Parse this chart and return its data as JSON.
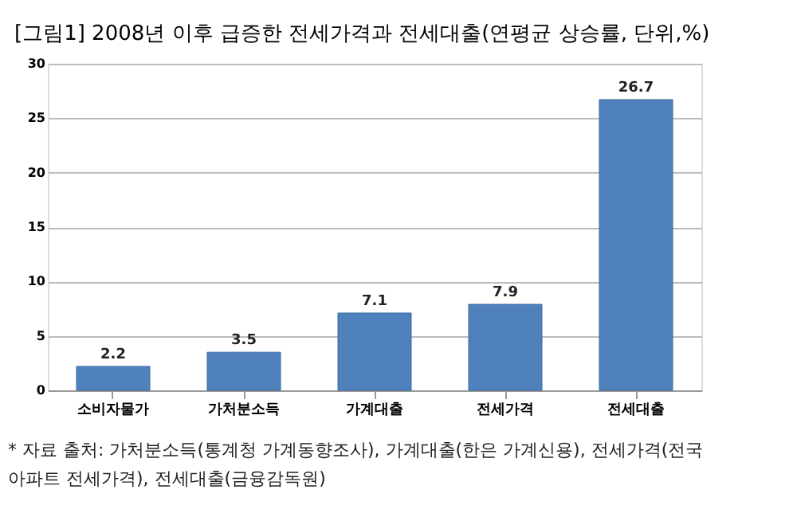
{
  "chart_data": {
    "type": "bar",
    "title": "[그림1] 2008년 이후 급증한 전세가격과 전세대출(연평균 상승률, 단위,%)",
    "categories": [
      "소비자물가",
      "가처분소득",
      "가계대출",
      "전세가격",
      "전세대출"
    ],
    "values": [
      2.2,
      3.5,
      7.1,
      7.9,
      26.7
    ],
    "color": "#4f81bd",
    "ylim": [
      0,
      30
    ],
    "yticks": [
      0,
      5,
      10,
      15,
      20,
      25,
      30
    ],
    "grid": "y",
    "data_labels": true,
    "annotations": [
      "* 자료 출처: 가처분소득(통계청 가계동향조사), 가계대출(한은 가계신용), 전세가격(전국",
      "아파트 전세가격), 전세대출(금융감독원)"
    ]
  }
}
